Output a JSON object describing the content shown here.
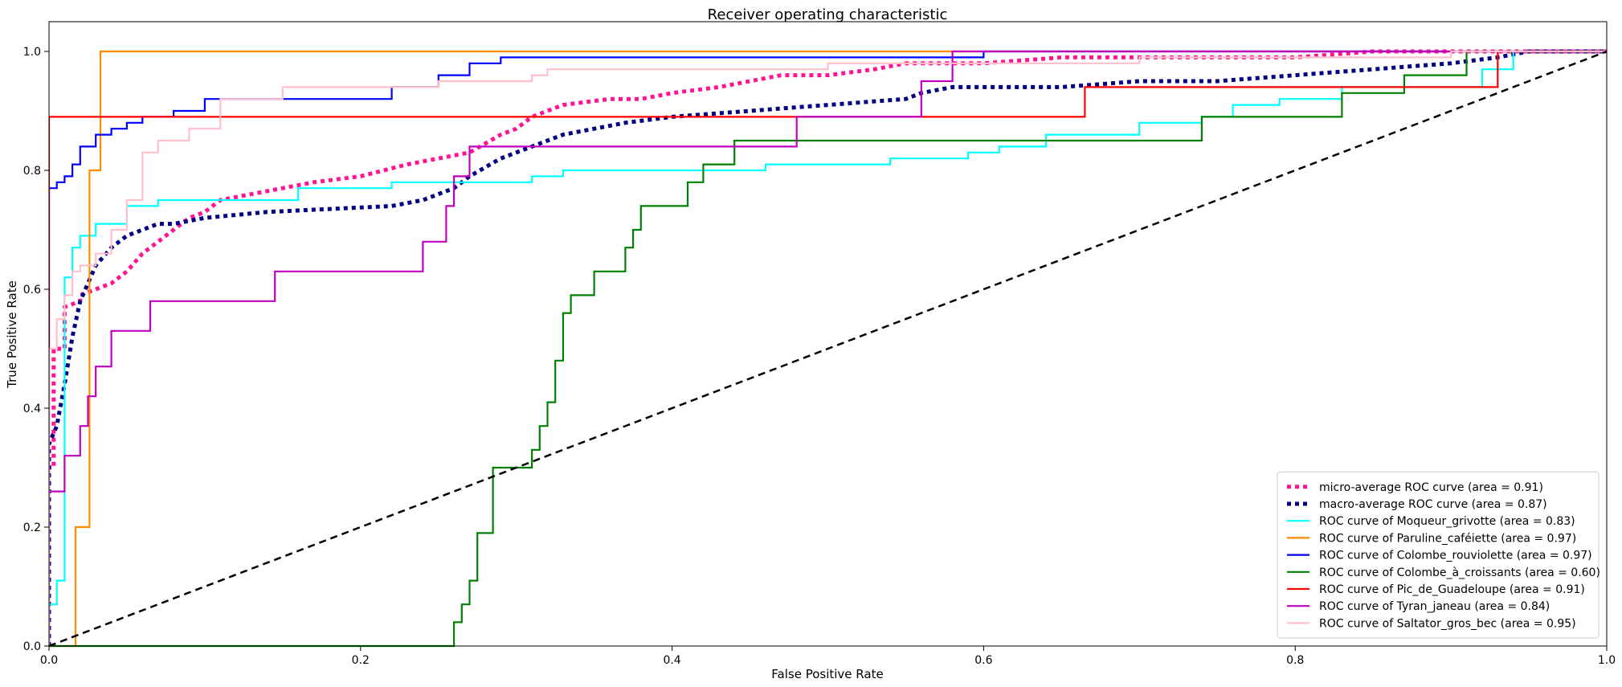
{
  "chart_data": {
    "type": "line",
    "title": "Receiver operating characteristic",
    "xlabel": "False Positive Rate",
    "ylabel": "True Positive Rate",
    "xlim": [
      0.0,
      1.0
    ],
    "ylim": [
      0.0,
      1.05
    ],
    "xticks": [
      "0.0",
      "0.2",
      "0.4",
      "0.6",
      "0.8",
      "1.0"
    ],
    "yticks": [
      "0.0",
      "0.2",
      "0.4",
      "0.6",
      "0.8",
      "1.0"
    ],
    "legend_position": "bottom-right",
    "grid": false,
    "series": [
      {
        "name": "micro-average ROC curve (area = 0.91)",
        "color": "#ff1493",
        "style": "dotted",
        "width": "thick",
        "x": [
          0.0,
          0.0,
          0.003,
          0.003,
          0.01,
          0.01,
          0.02,
          0.02,
          0.03,
          0.04,
          0.05,
          0.06,
          0.07,
          0.08,
          0.09,
          0.1,
          0.11,
          0.13,
          0.15,
          0.17,
          0.2,
          0.23,
          0.25,
          0.27,
          0.29,
          0.3,
          0.31,
          0.33,
          0.36,
          0.38,
          0.4,
          0.43,
          0.45,
          0.47,
          0.5,
          0.53,
          0.55,
          0.57,
          0.6,
          0.65,
          0.7,
          0.75,
          0.8,
          0.85,
          0.9,
          0.95,
          1.0
        ],
        "y": [
          0.0,
          0.3,
          0.3,
          0.5,
          0.5,
          0.57,
          0.58,
          0.59,
          0.6,
          0.61,
          0.63,
          0.66,
          0.68,
          0.7,
          0.72,
          0.73,
          0.75,
          0.76,
          0.77,
          0.78,
          0.79,
          0.81,
          0.82,
          0.83,
          0.86,
          0.87,
          0.89,
          0.91,
          0.92,
          0.92,
          0.93,
          0.94,
          0.95,
          0.96,
          0.96,
          0.97,
          0.98,
          0.98,
          0.98,
          0.99,
          0.99,
          0.99,
          0.99,
          1.0,
          1.0,
          1.0,
          1.0
        ]
      },
      {
        "name": "macro-average ROC curve (area = 0.87)",
        "color": "#000080",
        "style": "dotted",
        "width": "thick",
        "x": [
          0.0,
          0.0,
          0.005,
          0.01,
          0.015,
          0.02,
          0.03,
          0.04,
          0.05,
          0.06,
          0.07,
          0.08,
          0.1,
          0.14,
          0.22,
          0.24,
          0.26,
          0.27,
          0.29,
          0.31,
          0.33,
          0.37,
          0.4,
          0.45,
          0.5,
          0.55,
          0.56,
          0.58,
          0.65,
          0.7,
          0.75,
          0.8,
          0.85,
          0.9,
          0.93,
          0.95,
          1.0
        ],
        "y": [
          0.0,
          0.34,
          0.37,
          0.44,
          0.52,
          0.58,
          0.64,
          0.67,
          0.69,
          0.7,
          0.71,
          0.71,
          0.72,
          0.73,
          0.74,
          0.75,
          0.77,
          0.79,
          0.82,
          0.84,
          0.86,
          0.88,
          0.89,
          0.9,
          0.91,
          0.92,
          0.93,
          0.94,
          0.94,
          0.95,
          0.95,
          0.96,
          0.97,
          0.98,
          0.99,
          1.0,
          1.0
        ]
      },
      {
        "name": "ROC curve of Moqueur_grivotte (area = 0.83)",
        "color": "#00ffff",
        "style": "solid",
        "width": "normal",
        "x": [
          0.0,
          0.0,
          0.005,
          0.005,
          0.01,
          0.01,
          0.015,
          0.015,
          0.02,
          0.02,
          0.03,
          0.03,
          0.05,
          0.05,
          0.07,
          0.07,
          0.16,
          0.16,
          0.22,
          0.22,
          0.31,
          0.31,
          0.33,
          0.33,
          0.46,
          0.46,
          0.54,
          0.54,
          0.59,
          0.59,
          0.61,
          0.61,
          0.64,
          0.64,
          0.7,
          0.7,
          0.74,
          0.74,
          0.76,
          0.76,
          0.79,
          0.79,
          0.83,
          0.83,
          0.92,
          0.92,
          0.94,
          0.94,
          1.0
        ],
        "y": [
          0.0,
          0.07,
          0.07,
          0.11,
          0.11,
          0.62,
          0.62,
          0.67,
          0.67,
          0.69,
          0.69,
          0.71,
          0.71,
          0.74,
          0.74,
          0.75,
          0.75,
          0.77,
          0.77,
          0.78,
          0.78,
          0.79,
          0.79,
          0.8,
          0.8,
          0.81,
          0.81,
          0.82,
          0.82,
          0.83,
          0.83,
          0.84,
          0.84,
          0.86,
          0.86,
          0.88,
          0.88,
          0.89,
          0.89,
          0.91,
          0.91,
          0.92,
          0.92,
          0.94,
          0.94,
          0.97,
          0.97,
          1.0,
          1.0
        ]
      },
      {
        "name": "ROC curve of Paruline_caféiette (area = 0.97)",
        "color": "#ff8c00",
        "style": "solid",
        "width": "normal",
        "x": [
          0.0,
          0.017,
          0.017,
          0.026,
          0.026,
          0.033,
          0.033,
          1.0
        ],
        "y": [
          0.0,
          0.0,
          0.2,
          0.2,
          0.8,
          0.8,
          1.0,
          1.0
        ]
      },
      {
        "name": "ROC curve of Colombe_rouviolette (area = 0.97)",
        "color": "#0000ff",
        "style": "solid",
        "width": "normal",
        "x": [
          0.0,
          0.0,
          0.005,
          0.005,
          0.01,
          0.01,
          0.015,
          0.015,
          0.02,
          0.02,
          0.03,
          0.03,
          0.04,
          0.04,
          0.05,
          0.05,
          0.06,
          0.06,
          0.08,
          0.08,
          0.1,
          0.1,
          0.22,
          0.22,
          0.25,
          0.25,
          0.27,
          0.27,
          0.28,
          0.28,
          0.29,
          0.29,
          0.3,
          0.3,
          0.42,
          0.42,
          0.6,
          0.6,
          1.0
        ],
        "y": [
          0.0,
          0.77,
          0.77,
          0.78,
          0.78,
          0.79,
          0.79,
          0.81,
          0.81,
          0.84,
          0.84,
          0.86,
          0.86,
          0.87,
          0.87,
          0.88,
          0.88,
          0.89,
          0.89,
          0.9,
          0.9,
          0.92,
          0.92,
          0.94,
          0.94,
          0.96,
          0.96,
          0.98,
          0.98,
          0.98,
          0.98,
          0.99,
          0.99,
          0.99,
          0.99,
          0.99,
          0.99,
          1.0,
          1.0
        ]
      },
      {
        "name": "ROC curve of Colombe_à_croissants (area = 0.60)",
        "color": "#008000",
        "style": "solid",
        "width": "normal",
        "x": [
          0.0,
          0.26,
          0.26,
          0.265,
          0.265,
          0.27,
          0.27,
          0.275,
          0.275,
          0.285,
          0.285,
          0.31,
          0.31,
          0.315,
          0.315,
          0.32,
          0.32,
          0.325,
          0.325,
          0.33,
          0.33,
          0.335,
          0.335,
          0.35,
          0.35,
          0.37,
          0.37,
          0.375,
          0.375,
          0.38,
          0.38,
          0.41,
          0.41,
          0.42,
          0.42,
          0.44,
          0.44,
          0.74,
          0.74,
          0.83,
          0.83,
          0.87,
          0.87,
          0.91,
          0.91,
          1.0
        ],
        "y": [
          0.0,
          0.0,
          0.04,
          0.04,
          0.07,
          0.07,
          0.11,
          0.11,
          0.19,
          0.19,
          0.3,
          0.3,
          0.33,
          0.33,
          0.37,
          0.37,
          0.41,
          0.41,
          0.48,
          0.48,
          0.56,
          0.56,
          0.59,
          0.59,
          0.63,
          0.63,
          0.67,
          0.67,
          0.7,
          0.7,
          0.74,
          0.74,
          0.78,
          0.78,
          0.81,
          0.81,
          0.85,
          0.85,
          0.89,
          0.89,
          0.93,
          0.93,
          0.96,
          0.96,
          1.0,
          1.0
        ]
      },
      {
        "name": "ROC curve of Pic_de_Guadeloupe (area = 0.91)",
        "color": "#ff0000",
        "style": "solid",
        "width": "normal",
        "x": [
          0.0,
          0.0,
          0.665,
          0.665,
          0.93,
          0.93,
          1.0
        ],
        "y": [
          0.0,
          0.89,
          0.89,
          0.94,
          0.94,
          1.0,
          1.0
        ]
      },
      {
        "name": "ROC curve of Tyran_janeau (area = 0.84)",
        "color": "#bf00bf",
        "style": "solid",
        "width": "normal",
        "x": [
          0.0,
          0.0,
          0.01,
          0.01,
          0.02,
          0.02,
          0.025,
          0.025,
          0.03,
          0.03,
          0.04,
          0.04,
          0.065,
          0.065,
          0.145,
          0.145,
          0.24,
          0.24,
          0.255,
          0.255,
          0.26,
          0.26,
          0.27,
          0.27,
          0.48,
          0.48,
          0.56,
          0.56,
          0.58,
          0.58,
          1.0
        ],
        "y": [
          0.0,
          0.26,
          0.26,
          0.32,
          0.32,
          0.37,
          0.37,
          0.42,
          0.42,
          0.47,
          0.47,
          0.53,
          0.53,
          0.58,
          0.58,
          0.63,
          0.63,
          0.68,
          0.68,
          0.74,
          0.74,
          0.79,
          0.79,
          0.84,
          0.84,
          0.89,
          0.89,
          0.95,
          0.95,
          1.0,
          1.0
        ]
      },
      {
        "name": "ROC curve of Saltator_gros_bec (area = 0.95)",
        "color": "#ffc0cb",
        "style": "solid",
        "width": "normal",
        "x": [
          0.0,
          0.0,
          0.005,
          0.005,
          0.01,
          0.01,
          0.015,
          0.015,
          0.02,
          0.02,
          0.03,
          0.03,
          0.04,
          0.04,
          0.05,
          0.05,
          0.06,
          0.06,
          0.07,
          0.07,
          0.09,
          0.09,
          0.11,
          0.11,
          0.15,
          0.15,
          0.25,
          0.25,
          0.31,
          0.31,
          0.32,
          0.32,
          0.5,
          0.5,
          0.7,
          0.7,
          0.9,
          0.9,
          1.0
        ],
        "y": [
          0.0,
          0.5,
          0.5,
          0.55,
          0.55,
          0.59,
          0.59,
          0.63,
          0.63,
          0.64,
          0.64,
          0.66,
          0.66,
          0.7,
          0.7,
          0.75,
          0.75,
          0.83,
          0.83,
          0.85,
          0.85,
          0.87,
          0.87,
          0.92,
          0.92,
          0.94,
          0.94,
          0.95,
          0.95,
          0.96,
          0.96,
          0.97,
          0.97,
          0.98,
          0.98,
          0.99,
          0.99,
          1.0,
          1.0
        ]
      },
      {
        "name": "",
        "color": "#000000",
        "style": "dashed",
        "width": "normal",
        "x": [
          0.0,
          1.0
        ],
        "y": [
          0.0,
          1.0
        ]
      }
    ]
  }
}
